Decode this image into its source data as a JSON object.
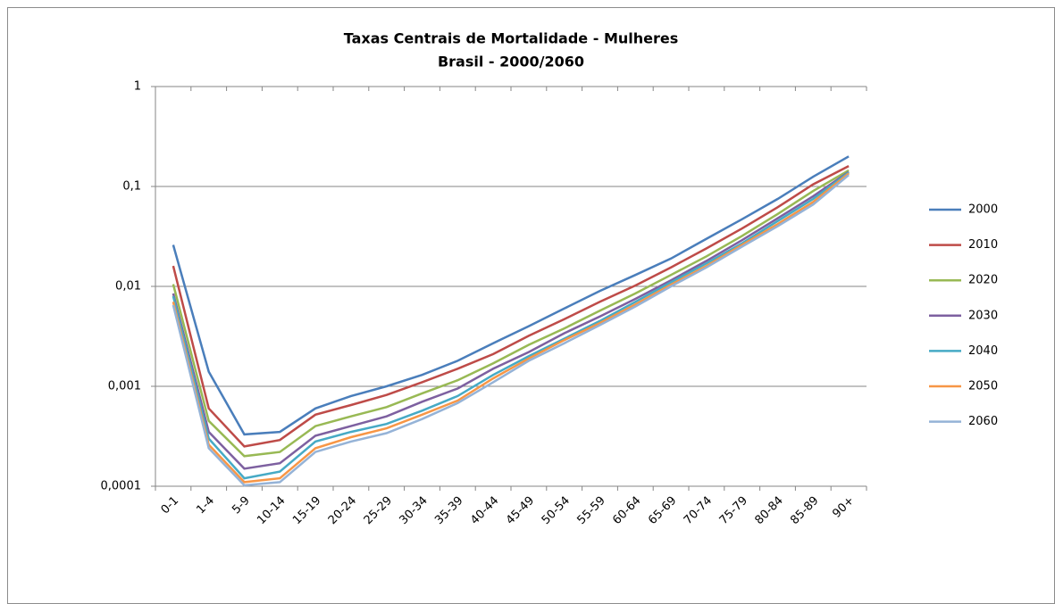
{
  "chart_data": {
    "type": "line",
    "title": "Taxas Centrais de Mortalidade - Mulheres",
    "subtitle": "Brasil - 2000/2060",
    "categories": [
      "0-1",
      "1-4",
      "5-9",
      "10-14",
      "15-19",
      "20-24",
      "25-29",
      "30-34",
      "35-39",
      "40-44",
      "45-49",
      "50-54",
      "55-59",
      "60-64",
      "65-69",
      "70-74",
      "75-79",
      "80-84",
      "85-89",
      "90+"
    ],
    "yscale": "log",
    "ylim": [
      0.0001,
      1
    ],
    "yticks": [
      {
        "value": 0.0001,
        "label": "0,0001"
      },
      {
        "value": 0.001,
        "label": "0,001"
      },
      {
        "value": 0.01,
        "label": "0,01"
      },
      {
        "value": 0.1,
        "label": "0,1"
      },
      1
    ],
    "grid": true,
    "legend": "right",
    "series": [
      {
        "name": "2000",
        "color": "#4a7ebb",
        "values": [
          0.026,
          0.0014,
          0.00033,
          0.00035,
          0.0006,
          0.0008,
          0.001,
          0.0013,
          0.0018,
          0.0027,
          0.004,
          0.006,
          0.009,
          0.013,
          0.019,
          0.03,
          0.047,
          0.075,
          0.125,
          0.2
        ]
      },
      {
        "name": "2010",
        "color": "#be4b48",
        "values": [
          0.016,
          0.0006,
          0.00025,
          0.00029,
          0.00052,
          0.00065,
          0.00082,
          0.0011,
          0.0015,
          0.0021,
          0.0032,
          0.0047,
          0.007,
          0.0102,
          0.0155,
          0.024,
          0.038,
          0.062,
          0.105,
          0.16
        ]
      },
      {
        "name": "2020",
        "color": "#98b954",
        "values": [
          0.0105,
          0.00045,
          0.0002,
          0.00022,
          0.0004,
          0.0005,
          0.00062,
          0.00085,
          0.00115,
          0.0017,
          0.0026,
          0.0038,
          0.0057,
          0.0085,
          0.013,
          0.02,
          0.032,
          0.053,
          0.09,
          0.145
        ]
      },
      {
        "name": "2030",
        "color": "#7d60a0",
        "values": [
          0.0085,
          0.00035,
          0.00015,
          0.00017,
          0.00032,
          0.0004,
          0.0005,
          0.0007,
          0.00095,
          0.0015,
          0.0022,
          0.0034,
          0.005,
          0.0075,
          0.0115,
          0.018,
          0.029,
          0.048,
          0.08,
          0.14
        ]
      },
      {
        "name": "2040",
        "color": "#46aac5",
        "values": [
          0.008,
          0.0003,
          0.00012,
          0.00014,
          0.00028,
          0.00035,
          0.00042,
          0.00057,
          0.0008,
          0.0013,
          0.002,
          0.003,
          0.0045,
          0.007,
          0.011,
          0.017,
          0.027,
          0.045,
          0.075,
          0.138
        ]
      },
      {
        "name": "2050",
        "color": "#f79646",
        "values": [
          0.007,
          0.00026,
          0.00011,
          0.00012,
          0.00024,
          0.00031,
          0.00038,
          0.00052,
          0.00072,
          0.0012,
          0.0019,
          0.0029,
          0.0043,
          0.0066,
          0.0104,
          0.016,
          0.026,
          0.042,
          0.07,
          0.135
        ]
      },
      {
        "name": "2060",
        "color": "#95b3d7",
        "values": [
          0.0065,
          0.00024,
          0.000102,
          0.00011,
          0.00022,
          0.00028,
          0.00034,
          0.00047,
          0.00068,
          0.0011,
          0.0018,
          0.0027,
          0.0041,
          0.0063,
          0.01,
          0.0155,
          0.025,
          0.04,
          0.066,
          0.13
        ]
      }
    ]
  }
}
